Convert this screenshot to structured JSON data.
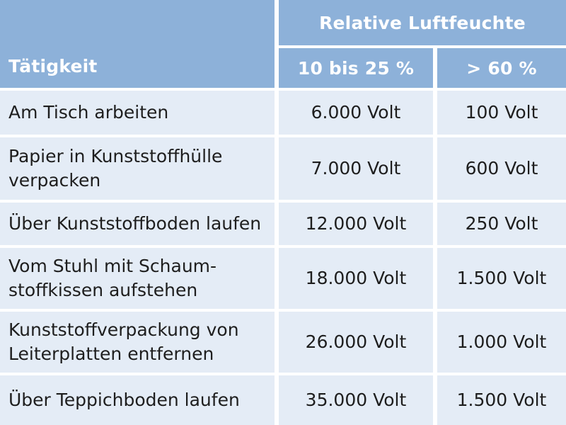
{
  "table": {
    "header": {
      "activity_label": "Tätigkeit",
      "group_label": "Relative Luftfeuchte",
      "col1_label": "10 bis 25 %",
      "col2_label": "> 60 %"
    },
    "rows": [
      {
        "activity": "Am Tisch arbeiten",
        "low": "6.000 Volt",
        "high": "100 Volt"
      },
      {
        "activity": "Papier in Kunststoffhülle verpacken",
        "low": "7.000 Volt",
        "high": "600 Volt"
      },
      {
        "activity": "Über Kunststoffboden laufen",
        "low": "12.000 Volt",
        "high": "250 Volt"
      },
      {
        "activity": "Vom Stuhl mit Schaum-stoffkissen aufstehen",
        "low": "18.000 Volt",
        "high": "1.500 Volt"
      },
      {
        "activity": "Kunststoffverpackung von Leiterplatten entfernen",
        "low": "26.000 Volt",
        "high": "1.000 Volt"
      },
      {
        "activity": "Über Teppichboden laufen",
        "low": "35.000 Volt",
        "high": "1.500 Volt"
      }
    ]
  }
}
